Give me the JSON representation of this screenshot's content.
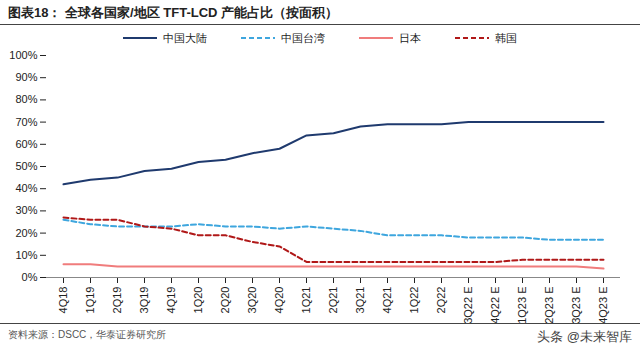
{
  "chart_data": {
    "type": "line",
    "title": "图表18：   全球各国家/地区 TFT-LCD 产能占比（按面积）",
    "caption": "资料来源：DSCC，华泰证券研究所",
    "annotations": [
      "头条 @未来智库"
    ],
    "categories": [
      "4Q18",
      "1Q19",
      "2Q19",
      "3Q19",
      "4Q19",
      "1Q20",
      "2Q20",
      "3Q20",
      "4Q20",
      "1Q21",
      "2Q21",
      "3Q21",
      "4Q21",
      "1Q22",
      "2Q22",
      "3Q22 E",
      "4Q22 E",
      "1Q23 E",
      "2Q23 E",
      "3Q23 E",
      "4Q23 E"
    ],
    "series": [
      {
        "name": "中国大陆",
        "color": "#1F3A6E",
        "line_style": "solid",
        "values": [
          42,
          44,
          45,
          48,
          49,
          52,
          53,
          56,
          58,
          64,
          65,
          68,
          69,
          69,
          69,
          70,
          70,
          70,
          70,
          70,
          70
        ]
      },
      {
        "name": "中国台湾",
        "color": "#3EA6DE",
        "line_style": "dashed",
        "values": [
          26,
          24,
          23,
          23,
          23,
          24,
          23,
          23,
          22,
          23,
          22,
          21,
          19,
          19,
          19,
          18,
          18,
          18,
          17,
          17,
          17
        ]
      },
      {
        "name": "日本",
        "color": "#F07C7C",
        "line_style": "solid",
        "values": [
          6,
          6,
          5,
          5,
          5,
          5,
          5,
          5,
          5,
          5,
          5,
          5,
          5,
          5,
          5,
          5,
          5,
          5,
          5,
          5,
          4
        ]
      },
      {
        "name": "韩国",
        "color": "#B01818",
        "line_style": "dashed",
        "values": [
          27,
          26,
          26,
          23,
          22,
          19,
          19,
          16,
          14,
          7,
          7,
          7,
          7,
          7,
          7,
          7,
          7,
          8,
          8,
          8,
          8
        ]
      }
    ],
    "ylim": [
      0,
      100
    ],
    "yticks": [
      {
        "value": 0,
        "label": "0%"
      },
      {
        "value": 10,
        "label": "10%"
      },
      {
        "value": 20,
        "label": "20%"
      },
      {
        "value": 30,
        "label": "30%"
      },
      {
        "value": 40,
        "label": "40%"
      },
      {
        "value": 50,
        "label": "50%"
      },
      {
        "value": 60,
        "label": "60%"
      },
      {
        "value": 70,
        "label": "70%"
      },
      {
        "value": 80,
        "label": "80%"
      },
      {
        "value": 90,
        "label": "90%"
      },
      {
        "value": 100,
        "label": "100%"
      }
    ],
    "grid": false,
    "legend": "top"
  }
}
